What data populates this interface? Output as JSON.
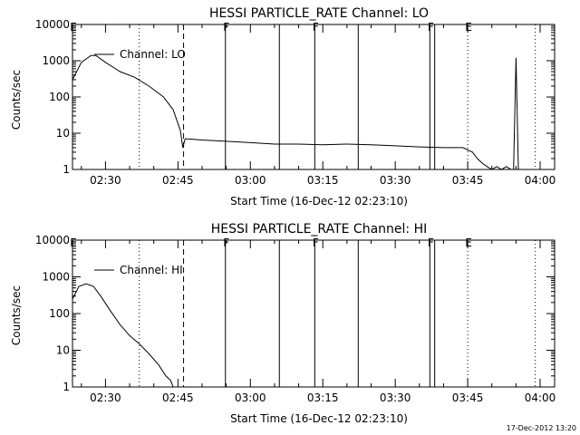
{
  "footer_timestamp": "17-Dec-2012 13:20",
  "chart_data": [
    {
      "type": "line",
      "title": "HESSI PARTICLE_RATE Channel: LO",
      "xlabel": "Start Time (16-Dec-12 02:23:10)",
      "ylabel": "Counts/sec",
      "y_scale": "log",
      "ylim": [
        1,
        10000
      ],
      "xlim": [
        "02:23:10",
        "04:03:00"
      ],
      "x_ticks": [
        "02:30",
        "02:45",
        "03:00",
        "03:15",
        "03:30",
        "03:45",
        "04:00"
      ],
      "y_ticks": [
        "1",
        "10",
        "100",
        "1000",
        "10000"
      ],
      "legend": "Channel: LO",
      "series": [
        {
          "name": "Channel: LO",
          "x": [
            "02:23:10",
            "02:25:00",
            "02:27:00",
            "02:28:00",
            "02:30:00",
            "02:33:00",
            "02:36:00",
            "02:39:00",
            "02:42:00",
            "02:44:00",
            "02:45:30",
            "02:46:00",
            "02:46:30",
            "02:47:00",
            "02:50:00",
            "02:55:00",
            "03:00:00",
            "03:05:00",
            "03:10:00",
            "03:15:00",
            "03:20:00",
            "03:25:00",
            "03:30:00",
            "03:35:00",
            "03:40:00",
            "03:44:00",
            "03:46:00",
            "03:47:00",
            "03:48:00",
            "03:49:00",
            "03:50:00",
            "03:51:00",
            "03:52:00",
            "03:53:00",
            "03:54:00",
            "03:54:30",
            "03:55:00",
            "03:55:30",
            "03:56:00",
            "03:56:30",
            "03:57:00",
            "03:58:00",
            "03:59:00",
            "03:59:30"
          ],
          "y": [
            300,
            900,
            1400,
            1400,
            900,
            500,
            350,
            200,
            100,
            45,
            12,
            4,
            7,
            7,
            6.5,
            6,
            5.5,
            5,
            5,
            4.8,
            5,
            4.8,
            4.5,
            4.2,
            4,
            4,
            3,
            2,
            1.5,
            1.2,
            0.8,
            1.2,
            0.8,
            1.2,
            0.8,
            1,
            1200,
            0.9,
            0.8,
            1,
            0.8,
            1,
            0.8,
            1
          ]
        }
      ],
      "markers": [
        {
          "time": "02:23:10",
          "style": "dotted",
          "label": "E"
        },
        {
          "time": "02:37:00",
          "style": "dotted",
          "label": ""
        },
        {
          "time": "02:46:10",
          "style": "dashed",
          "label": ""
        },
        {
          "time": "02:54:50",
          "style": "solid",
          "label": "F"
        },
        {
          "time": "03:06:00",
          "style": "solid",
          "label": ""
        },
        {
          "time": "03:13:20",
          "style": "solid",
          "label": "F"
        },
        {
          "time": "03:22:20",
          "style": "solid",
          "label": ""
        },
        {
          "time": "03:37:10",
          "style": "solid",
          "label": "F"
        },
        {
          "time": "03:38:10",
          "style": "solid",
          "label": ""
        },
        {
          "time": "03:45:00",
          "style": "dotted",
          "label": "E"
        },
        {
          "time": "03:59:00",
          "style": "dotted",
          "label": ""
        }
      ]
    },
    {
      "type": "line",
      "title": "HESSI PARTICLE_RATE Channel: HI",
      "xlabel": "Start Time (16-Dec-12 02:23:10)",
      "ylabel": "Counts/sec",
      "y_scale": "log",
      "ylim": [
        1,
        10000
      ],
      "xlim": [
        "02:23:10",
        "04:03:00"
      ],
      "x_ticks": [
        "02:30",
        "02:45",
        "03:00",
        "03:15",
        "03:30",
        "03:45",
        "04:00"
      ],
      "y_ticks": [
        "1",
        "10",
        "100",
        "1000",
        "10000"
      ],
      "legend": "Channel: HI",
      "series": [
        {
          "name": "Channel: HI",
          "x": [
            "02:23:10",
            "02:24:30",
            "02:26:00",
            "02:27:30",
            "02:29:00",
            "02:31:00",
            "02:33:00",
            "02:35:00",
            "02:37:00",
            "02:39:00",
            "02:41:00",
            "02:42:30",
            "02:43:30",
            "02:44:00"
          ],
          "y": [
            250,
            550,
            650,
            550,
            300,
            120,
            50,
            25,
            15,
            8,
            4,
            2,
            1.5,
            1
          ]
        }
      ],
      "markers": [
        {
          "time": "02:23:10",
          "style": "dotted",
          "label": "E"
        },
        {
          "time": "02:37:00",
          "style": "dotted",
          "label": ""
        },
        {
          "time": "02:46:10",
          "style": "dashed",
          "label": ""
        },
        {
          "time": "02:54:50",
          "style": "solid",
          "label": "F"
        },
        {
          "time": "03:06:00",
          "style": "solid",
          "label": ""
        },
        {
          "time": "03:13:20",
          "style": "solid",
          "label": "F"
        },
        {
          "time": "03:22:20",
          "style": "solid",
          "label": ""
        },
        {
          "time": "03:37:10",
          "style": "solid",
          "label": "F"
        },
        {
          "time": "03:38:10",
          "style": "solid",
          "label": ""
        },
        {
          "time": "03:45:00",
          "style": "dotted",
          "label": "E"
        },
        {
          "time": "03:59:00",
          "style": "dotted",
          "label": ""
        }
      ]
    }
  ]
}
